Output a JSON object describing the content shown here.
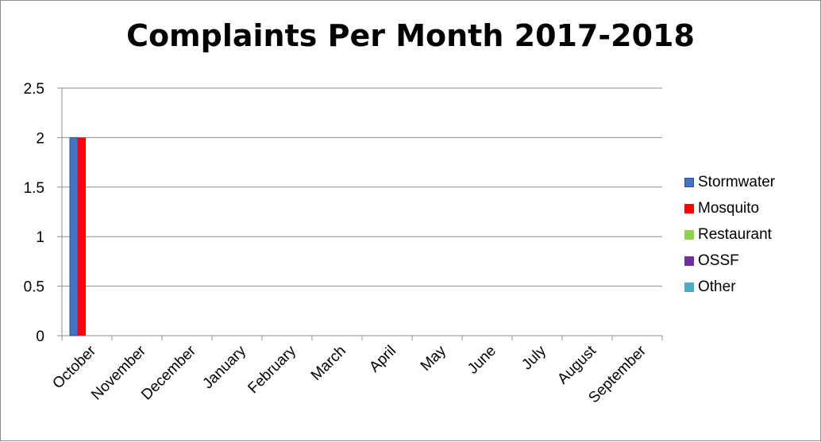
{
  "chart_data": {
    "type": "bar",
    "title": "Complaints Per Month 2017-2018",
    "categories": [
      "October",
      "November",
      "December",
      "January",
      "February",
      "March",
      "April",
      "May",
      "June",
      "July",
      "August",
      "September"
    ],
    "series": [
      {
        "name": "Stormwater",
        "color": "#4472c4",
        "values": [
          2,
          0,
          0,
          0,
          0,
          0,
          0,
          0,
          0,
          0,
          0,
          0
        ]
      },
      {
        "name": "Mosquito",
        "color": "#ff0000",
        "values": [
          2,
          0,
          0,
          0,
          0,
          0,
          0,
          0,
          0,
          0,
          0,
          0
        ]
      },
      {
        "name": "Restaurant",
        "color": "#92d050",
        "values": [
          0,
          0,
          0,
          0,
          0,
          0,
          0,
          0,
          0,
          0,
          0,
          0
        ]
      },
      {
        "name": "OSSF",
        "color": "#7030a0",
        "values": [
          0,
          0,
          0,
          0,
          0,
          0,
          0,
          0,
          0,
          0,
          0,
          0
        ]
      },
      {
        "name": "Other",
        "color": "#4bacc6",
        "values": [
          0,
          0,
          0,
          0,
          0,
          0,
          0,
          0,
          0,
          0,
          0,
          0
        ]
      }
    ],
    "yticks": [
      "0",
      "0.5",
      "1",
      "1.5",
      "2",
      "2.5"
    ],
    "ylim": [
      0,
      2.5
    ],
    "grid": true,
    "legend_position": "right"
  }
}
